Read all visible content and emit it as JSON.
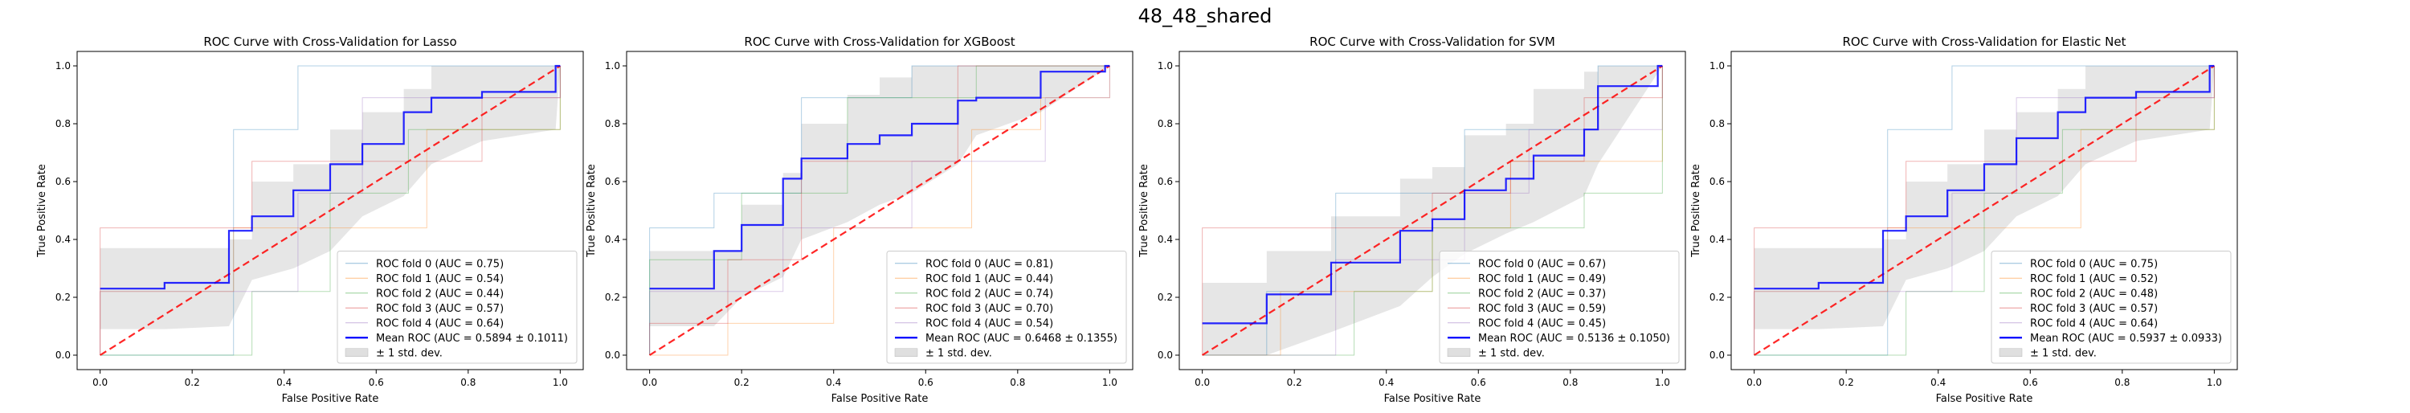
{
  "figure": {
    "suptitle": "48_48_shared"
  },
  "colors": {
    "fold_0": "#1f77b4",
    "fold_1": "#ff7f0e",
    "fold_2": "#2ca02c",
    "fold_3": "#d62728",
    "fold_4": "#9467bd",
    "mean": "#0000ff",
    "chance": "#ff0000",
    "std_band": "#808080"
  },
  "chart_data": [
    {
      "type": "line",
      "title": "ROC Curve with Cross-Validation for Lasso",
      "xlabel": "False Positive Rate",
      "ylabel": "True Positive Rate",
      "xlim": [
        -0.05,
        1.05
      ],
      "ylim": [
        -0.05,
        1.05
      ],
      "xticks": [
        "0.0",
        "0.2",
        "0.4",
        "0.6",
        "0.8",
        "1.0"
      ],
      "yticks": [
        "0.0",
        "0.2",
        "0.4",
        "0.6",
        "0.8",
        "1.0"
      ],
      "legend_position": "lower-right",
      "series": [
        {
          "name": "ROC fold 0 (AUC = 0.75)",
          "kind": "fold",
          "x": [
            0,
            0.29,
            0.29,
            0.43,
            0.43,
            1,
            1
          ],
          "y": [
            0,
            0,
            0.78,
            0.78,
            1,
            1,
            1
          ]
        },
        {
          "name": "ROC fold 1 (AUC = 0.54)",
          "kind": "fold",
          "x": [
            0,
            0,
            0.29,
            0.29,
            0.71,
            0.71,
            1,
            1
          ],
          "y": [
            0,
            0.22,
            0.22,
            0.44,
            0.44,
            0.78,
            0.78,
            1
          ]
        },
        {
          "name": "ROC fold 2 (AUC = 0.44)",
          "kind": "fold",
          "x": [
            0,
            0.33,
            0.33,
            0.5,
            0.5,
            0.67,
            0.67,
            1,
            1
          ],
          "y": [
            0,
            0,
            0.22,
            0.22,
            0.56,
            0.56,
            0.78,
            0.78,
            1
          ]
        },
        {
          "name": "ROC fold 3 (AUC = 0.57)",
          "kind": "fold",
          "x": [
            0,
            0,
            0.33,
            0.33,
            0.83,
            0.83,
            1,
            1
          ],
          "y": [
            0,
            0.44,
            0.44,
            0.67,
            0.67,
            0.89,
            0.89,
            1
          ]
        },
        {
          "name": "ROC fold 4 (AUC = 0.64)",
          "kind": "fold",
          "x": [
            0,
            0,
            0.43,
            0.43,
            0.57,
            0.57,
            1,
            1
          ],
          "y": [
            0,
            0.22,
            0.22,
            0.56,
            0.56,
            0.89,
            0.89,
            1
          ]
        },
        {
          "name": "Mean ROC (AUC = 0.5894 ± 0.1011)",
          "kind": "mean",
          "x": [
            0,
            0.14,
            0.14,
            0.28,
            0.28,
            0.33,
            0.33,
            0.42,
            0.42,
            0.5,
            0.5,
            0.57,
            0.57,
            0.66,
            0.66,
            0.72,
            0.72,
            0.83,
            0.83,
            0.99,
            0.99,
            1
          ],
          "y": [
            0.23,
            0.23,
            0.25,
            0.25,
            0.43,
            0.43,
            0.48,
            0.48,
            0.57,
            0.57,
            0.66,
            0.66,
            0.73,
            0.73,
            0.84,
            0.84,
            0.89,
            0.89,
            0.91,
            0.91,
            1.0,
            1.0
          ]
        },
        {
          "name": "± 1 std. dev.",
          "kind": "band",
          "x": [
            0,
            0.14,
            0.28,
            0.33,
            0.42,
            0.5,
            0.57,
            0.66,
            0.72,
            0.83,
            0.99,
            1
          ],
          "lower": [
            0.09,
            0.09,
            0.1,
            0.26,
            0.3,
            0.36,
            0.48,
            0.55,
            0.66,
            0.74,
            0.78,
            1.0
          ],
          "upper": [
            0.37,
            0.37,
            0.4,
            0.6,
            0.66,
            0.78,
            0.84,
            0.92,
            1.0,
            1.0,
            1.0,
            1.0
          ]
        },
        {
          "name": "",
          "kind": "chance",
          "x": [
            0,
            1
          ],
          "y": [
            0,
            1
          ]
        }
      ]
    },
    {
      "type": "line",
      "title": "ROC Curve with Cross-Validation for XGBoost",
      "xlabel": "False Positive Rate",
      "ylabel": "True Positive Rate",
      "xlim": [
        -0.05,
        1.05
      ],
      "ylim": [
        -0.05,
        1.05
      ],
      "xticks": [
        "0.0",
        "0.2",
        "0.4",
        "0.6",
        "0.8",
        "1.0"
      ],
      "yticks": [
        "0.0",
        "0.2",
        "0.4",
        "0.6",
        "0.8",
        "1.0"
      ],
      "legend_position": "lower-right",
      "series": [
        {
          "name": "ROC fold 0 (AUC = 0.81)",
          "kind": "fold",
          "x": [
            0,
            0,
            0.14,
            0.14,
            0.33,
            0.33,
            0.57,
            0.57,
            1
          ],
          "y": [
            0,
            0.44,
            0.44,
            0.56,
            0.56,
            0.89,
            0.89,
            1,
            1
          ]
        },
        {
          "name": "ROC fold 1 (AUC = 0.44)",
          "kind": "fold",
          "x": [
            0,
            0.17,
            0.17,
            0.4,
            0.4,
            0.7,
            0.7,
            0.85,
            0.85,
            1,
            1
          ],
          "y": [
            0,
            0,
            0.11,
            0.11,
            0.44,
            0.44,
            0.78,
            0.78,
            0.89,
            0.89,
            1
          ]
        },
        {
          "name": "ROC fold 2 (AUC = 0.74)",
          "kind": "fold",
          "x": [
            0,
            0,
            0.2,
            0.2,
            0.43,
            0.43,
            0.71,
            0.71,
            1
          ],
          "y": [
            0,
            0.33,
            0.33,
            0.56,
            0.56,
            0.89,
            0.89,
            1,
            1
          ]
        },
        {
          "name": "ROC fold 3 (AUC = 0.70)",
          "kind": "fold",
          "x": [
            0,
            0,
            0.17,
            0.17,
            0.33,
            0.33,
            0.67,
            0.67,
            1
          ],
          "y": [
            0,
            0.11,
            0.11,
            0.33,
            0.33,
            0.67,
            0.67,
            1,
            1
          ]
        },
        {
          "name": "ROC fold 4 (AUC = 0.54)",
          "kind": "fold",
          "x": [
            0,
            0,
            0.29,
            0.29,
            0.57,
            0.57,
            0.86,
            0.86,
            1,
            1
          ],
          "y": [
            0,
            0.22,
            0.22,
            0.44,
            0.44,
            0.67,
            0.67,
            0.89,
            0.89,
            1
          ]
        },
        {
          "name": "Mean ROC (AUC = 0.6468 ± 0.1355)",
          "kind": "mean",
          "x": [
            0,
            0.14,
            0.14,
            0.2,
            0.2,
            0.29,
            0.29,
            0.33,
            0.33,
            0.43,
            0.43,
            0.5,
            0.5,
            0.57,
            0.57,
            0.67,
            0.67,
            0.71,
            0.71,
            0.85,
            0.85,
            0.99,
            0.99,
            1
          ],
          "y": [
            0.23,
            0.23,
            0.36,
            0.36,
            0.45,
            0.45,
            0.61,
            0.61,
            0.68,
            0.68,
            0.73,
            0.73,
            0.76,
            0.76,
            0.8,
            0.8,
            0.88,
            0.88,
            0.89,
            0.89,
            0.98,
            0.98,
            1.0,
            1.0
          ]
        },
        {
          "name": "± 1 std. dev.",
          "kind": "band",
          "x": [
            0,
            0.14,
            0.2,
            0.29,
            0.33,
            0.43,
            0.5,
            0.57,
            0.67,
            0.71,
            0.85,
            1
          ],
          "lower": [
            0.1,
            0.1,
            0.2,
            0.27,
            0.4,
            0.46,
            0.52,
            0.56,
            0.66,
            0.76,
            0.84,
            1.0
          ],
          "upper": [
            0.36,
            0.36,
            0.52,
            0.63,
            0.8,
            0.9,
            0.96,
            1.0,
            1.0,
            1.0,
            1.0,
            1.0
          ]
        },
        {
          "name": "",
          "kind": "chance",
          "x": [
            0,
            1
          ],
          "y": [
            0,
            1
          ]
        }
      ]
    },
    {
      "type": "line",
      "title": "ROC Curve with Cross-Validation for SVM",
      "xlabel": "False Positive Rate",
      "ylabel": "True Positive Rate",
      "xlim": [
        -0.05,
        1.05
      ],
      "ylim": [
        -0.05,
        1.05
      ],
      "xticks": [
        "0.0",
        "0.2",
        "0.4",
        "0.6",
        "0.8",
        "1.0"
      ],
      "yticks": [
        "0.0",
        "0.2",
        "0.4",
        "0.6",
        "0.8",
        "1.0"
      ],
      "legend_position": "lower-right",
      "series": [
        {
          "name": "ROC fold 0 (AUC = 0.67)",
          "kind": "fold",
          "x": [
            0,
            0.14,
            0.14,
            0.29,
            0.29,
            0.57,
            0.57,
            0.86,
            0.86,
            1
          ],
          "y": [
            0,
            0,
            0.22,
            0.22,
            0.56,
            0.56,
            0.78,
            0.78,
            1,
            1
          ]
        },
        {
          "name": "ROC fold 1 (AUC = 0.49)",
          "kind": "fold",
          "x": [
            0,
            0.17,
            0.17,
            0.5,
            0.5,
            0.67,
            0.67,
            1,
            1
          ],
          "y": [
            0,
            0,
            0.22,
            0.22,
            0.44,
            0.44,
            0.67,
            0.67,
            1
          ]
        },
        {
          "name": "ROC fold 2 (AUC = 0.37)",
          "kind": "fold",
          "x": [
            0,
            0.33,
            0.33,
            0.5,
            0.5,
            0.83,
            0.83,
            1,
            1
          ],
          "y": [
            0,
            0,
            0.22,
            0.22,
            0.44,
            0.44,
            0.56,
            0.56,
            1
          ]
        },
        {
          "name": "ROC fold 3 (AUC = 0.59)",
          "kind": "fold",
          "x": [
            0,
            0,
            0.5,
            0.5,
            0.67,
            0.67,
            0.83,
            0.83,
            1,
            1
          ],
          "y": [
            0,
            0.44,
            0.44,
            0.56,
            0.56,
            0.67,
            0.67,
            0.89,
            0.89,
            1
          ]
        },
        {
          "name": "ROC fold 4 (AUC = 0.45)",
          "kind": "fold",
          "x": [
            0,
            0.29,
            0.29,
            0.57,
            0.57,
            0.71,
            0.71,
            1,
            1
          ],
          "y": [
            0,
            0,
            0.33,
            0.33,
            0.56,
            0.56,
            0.78,
            0.78,
            1
          ]
        },
        {
          "name": "Mean ROC (AUC = 0.5136 ± 0.1050)",
          "kind": "mean",
          "x": [
            0,
            0.14,
            0.14,
            0.28,
            0.28,
            0.43,
            0.43,
            0.5,
            0.5,
            0.57,
            0.57,
            0.66,
            0.66,
            0.72,
            0.72,
            0.83,
            0.83,
            0.86,
            0.86,
            0.99,
            0.99,
            1
          ],
          "y": [
            0.11,
            0.11,
            0.21,
            0.21,
            0.32,
            0.32,
            0.43,
            0.43,
            0.47,
            0.47,
            0.57,
            0.57,
            0.61,
            0.61,
            0.69,
            0.69,
            0.78,
            0.78,
            0.93,
            0.93,
            1.0,
            1.0
          ]
        },
        {
          "name": "± 1 std. dev.",
          "kind": "band",
          "x": [
            0,
            0.14,
            0.28,
            0.43,
            0.5,
            0.57,
            0.66,
            0.72,
            0.83,
            0.86,
            1
          ],
          "lower": [
            0.0,
            0.0,
            0.08,
            0.17,
            0.27,
            0.35,
            0.42,
            0.46,
            0.55,
            0.66,
            1.0
          ],
          "upper": [
            0.25,
            0.36,
            0.48,
            0.61,
            0.65,
            0.76,
            0.8,
            0.92,
            0.98,
            1.0,
            1.0
          ]
        },
        {
          "name": "",
          "kind": "chance",
          "x": [
            0,
            1
          ],
          "y": [
            0,
            1
          ]
        }
      ]
    },
    {
      "type": "line",
      "title": "ROC Curve with Cross-Validation for Elastic Net",
      "xlabel": "False Positive Rate",
      "ylabel": "True Positive Rate",
      "xlim": [
        -0.05,
        1.05
      ],
      "ylim": [
        -0.05,
        1.05
      ],
      "xticks": [
        "0.0",
        "0.2",
        "0.4",
        "0.6",
        "0.8",
        "1.0"
      ],
      "yticks": [
        "0.0",
        "0.2",
        "0.4",
        "0.6",
        "0.8",
        "1.0"
      ],
      "legend_position": "lower-right",
      "series": [
        {
          "name": "ROC fold 0 (AUC = 0.75)",
          "kind": "fold",
          "x": [
            0,
            0.29,
            0.29,
            0.43,
            0.43,
            1,
            1
          ],
          "y": [
            0,
            0,
            0.78,
            0.78,
            1,
            1,
            1
          ]
        },
        {
          "name": "ROC fold 1 (AUC = 0.52)",
          "kind": "fold",
          "x": [
            0,
            0,
            0.29,
            0.29,
            0.71,
            0.71,
            1,
            1
          ],
          "y": [
            0,
            0.22,
            0.22,
            0.44,
            0.44,
            0.78,
            0.78,
            1
          ]
        },
        {
          "name": "ROC fold 2 (AUC = 0.48)",
          "kind": "fold",
          "x": [
            0,
            0.33,
            0.33,
            0.5,
            0.5,
            0.67,
            0.67,
            1,
            1
          ],
          "y": [
            0,
            0,
            0.22,
            0.22,
            0.56,
            0.56,
            0.78,
            0.78,
            1
          ]
        },
        {
          "name": "ROC fold 3 (AUC = 0.57)",
          "kind": "fold",
          "x": [
            0,
            0,
            0.33,
            0.33,
            0.83,
            0.83,
            1,
            1
          ],
          "y": [
            0,
            0.44,
            0.44,
            0.67,
            0.67,
            0.89,
            0.89,
            1
          ]
        },
        {
          "name": "ROC fold 4 (AUC = 0.64)",
          "kind": "fold",
          "x": [
            0,
            0,
            0.43,
            0.43,
            0.57,
            0.57,
            1,
            1
          ],
          "y": [
            0,
            0.22,
            0.22,
            0.56,
            0.56,
            0.89,
            0.89,
            1
          ]
        },
        {
          "name": "Mean ROC (AUC = 0.5937 ± 0.0933)",
          "kind": "mean",
          "x": [
            0,
            0.14,
            0.14,
            0.28,
            0.28,
            0.33,
            0.33,
            0.42,
            0.42,
            0.5,
            0.5,
            0.57,
            0.57,
            0.66,
            0.66,
            0.72,
            0.72,
            0.83,
            0.83,
            0.99,
            0.99,
            1
          ],
          "y": [
            0.23,
            0.23,
            0.25,
            0.25,
            0.43,
            0.43,
            0.48,
            0.48,
            0.57,
            0.57,
            0.66,
            0.66,
            0.75,
            0.75,
            0.84,
            0.84,
            0.89,
            0.89,
            0.91,
            0.91,
            1.0,
            1.0
          ]
        },
        {
          "name": "± 1 std. dev.",
          "kind": "band",
          "x": [
            0,
            0.14,
            0.28,
            0.33,
            0.42,
            0.5,
            0.57,
            0.66,
            0.72,
            0.83,
            0.99,
            1
          ],
          "lower": [
            0.09,
            0.09,
            0.1,
            0.26,
            0.3,
            0.36,
            0.48,
            0.55,
            0.66,
            0.74,
            0.78,
            1.0
          ],
          "upper": [
            0.37,
            0.37,
            0.4,
            0.6,
            0.66,
            0.78,
            0.84,
            0.92,
            1.0,
            1.0,
            1.0,
            1.0
          ]
        },
        {
          "name": "",
          "kind": "chance",
          "x": [
            0,
            1
          ],
          "y": [
            0,
            1
          ]
        }
      ]
    }
  ]
}
